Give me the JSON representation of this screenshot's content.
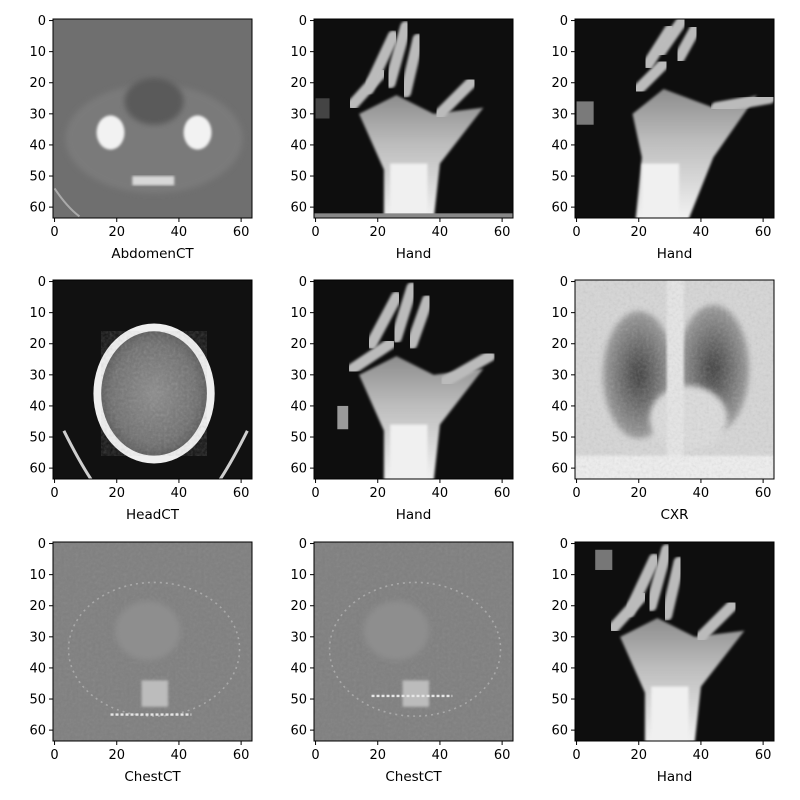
{
  "figure": {
    "grid": {
      "rows": 3,
      "cols": 3
    },
    "image_size": 64,
    "x_ticks": [
      0,
      20,
      40,
      60
    ],
    "y_ticks": [
      0,
      10,
      20,
      30,
      40,
      50,
      60
    ],
    "colormap": "gray"
  },
  "panels": [
    {
      "label": "AbdomenCT",
      "kind": "abdomen-ct"
    },
    {
      "label": "Hand",
      "kind": "hand-xray"
    },
    {
      "label": "Hand",
      "kind": "hand-xray"
    },
    {
      "label": "HeadCT",
      "kind": "head-ct"
    },
    {
      "label": "Hand",
      "kind": "hand-xray"
    },
    {
      "label": "CXR",
      "kind": "chest-xray"
    },
    {
      "label": "ChestCT",
      "kind": "chest-ct"
    },
    {
      "label": "ChestCT",
      "kind": "chest-ct"
    },
    {
      "label": "Hand",
      "kind": "hand-xray"
    }
  ]
}
